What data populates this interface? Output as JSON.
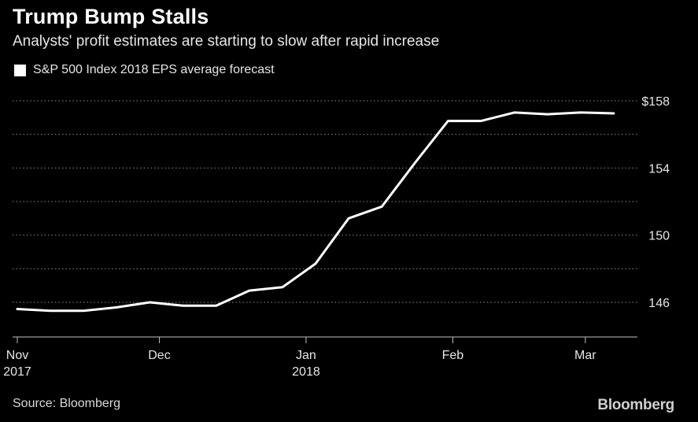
{
  "title": "Trump Bump Stalls",
  "subtitle": "Analysts' profit estimates are starting to slow after rapid increase",
  "source": "Source: Bloomberg",
  "brand": "Bloomberg",
  "colors": {
    "background": "#000000",
    "line": "#ffffff",
    "grid": "#8c8c8c",
    "text": "#e6e6e6"
  },
  "chart_data": {
    "type": "line",
    "title": "Trump Bump Stalls",
    "subtitle": "Analysts' profit estimates are starting to slow after rapid increase",
    "legend_position": "top-left",
    "grid": true,
    "series": [
      {
        "name": "S&P 500 Index 2018 EPS average forecast",
        "x": [
          "2017-11-01",
          "2017-11-08",
          "2017-11-15",
          "2017-11-22",
          "2017-11-29",
          "2017-12-06",
          "2017-12-13",
          "2017-12-20",
          "2017-12-27",
          "2018-01-03",
          "2018-01-10",
          "2018-01-17",
          "2018-01-24",
          "2018-01-31",
          "2018-02-07",
          "2018-02-14",
          "2018-02-21",
          "2018-02-28",
          "2018-03-07"
        ],
        "values": [
          145.6,
          145.5,
          145.5,
          145.7,
          146.0,
          145.8,
          145.8,
          146.7,
          146.9,
          148.3,
          151.0,
          151.7,
          154.3,
          156.8,
          156.8,
          157.3,
          157.2,
          157.3,
          157.25
        ]
      }
    ],
    "y_ticks": [
      {
        "value": 146,
        "label": "146"
      },
      {
        "value": 150,
        "label": "150"
      },
      {
        "value": 154,
        "label": "154"
      },
      {
        "value": 158,
        "label": "$158"
      }
    ],
    "y_gridlines": [
      146,
      148,
      150,
      152,
      154,
      156,
      158
    ],
    "ylim": [
      144,
      159
    ],
    "x_ticks": [
      {
        "date": "2017-11-01",
        "line1": "Nov",
        "line2": "2017"
      },
      {
        "date": "2017-12-01",
        "line1": "Dec",
        "line2": ""
      },
      {
        "date": "2018-01-01",
        "line1": "Jan",
        "line2": "2018"
      },
      {
        "date": "2018-02-01",
        "line1": "Feb",
        "line2": ""
      },
      {
        "date": "2018-03-01",
        "line1": "Mar",
        "line2": ""
      }
    ],
    "xlim": [
      "2017-10-31",
      "2018-03-12"
    ],
    "xlabel": "",
    "ylabel": ""
  }
}
